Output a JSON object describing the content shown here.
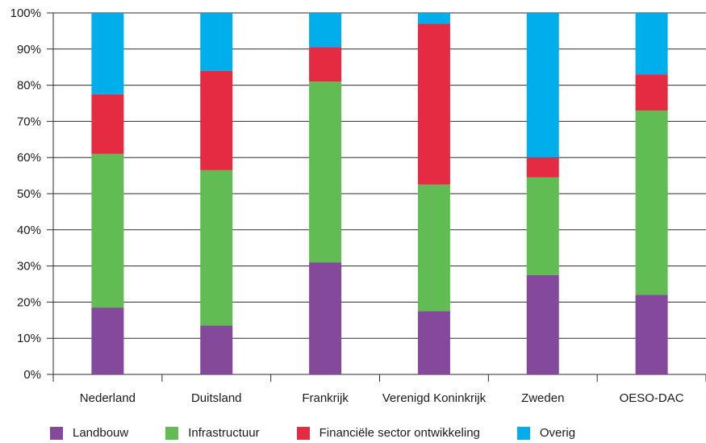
{
  "chart_data": {
    "type": "bar",
    "stacked": true,
    "percent": true,
    "categories": [
      "Nederland",
      "Duitsland",
      "Frankrijk",
      "Verenigd Koninkrijk",
      "Zweden",
      "OESO-DAC"
    ],
    "series": [
      {
        "name": "Landbouw",
        "color": "#84499b",
        "values": [
          18.5,
          13.5,
          31.0,
          17.5,
          27.5,
          22.0
        ]
      },
      {
        "name": "Infrastructuur",
        "color": "#61bc54",
        "values": [
          42.5,
          43.0,
          50.0,
          35.0,
          27.0,
          51.0
        ]
      },
      {
        "name": "Financiële sector ontwikkeling",
        "color": "#e42b41",
        "values": [
          16.5,
          27.5,
          9.5,
          44.5,
          5.5,
          10.0
        ]
      },
      {
        "name": "Overig",
        "color": "#00aeec",
        "values": [
          22.5,
          16.0,
          9.5,
          3.0,
          40.0,
          17.0
        ]
      }
    ],
    "yticks": [
      "0%",
      "10%",
      "20%",
      "30%",
      "40%",
      "50%",
      "60%",
      "70%",
      "80%",
      "90%",
      "100%"
    ],
    "ylim": [
      0,
      100
    ],
    "grid": true,
    "legend_position": "bottom"
  }
}
